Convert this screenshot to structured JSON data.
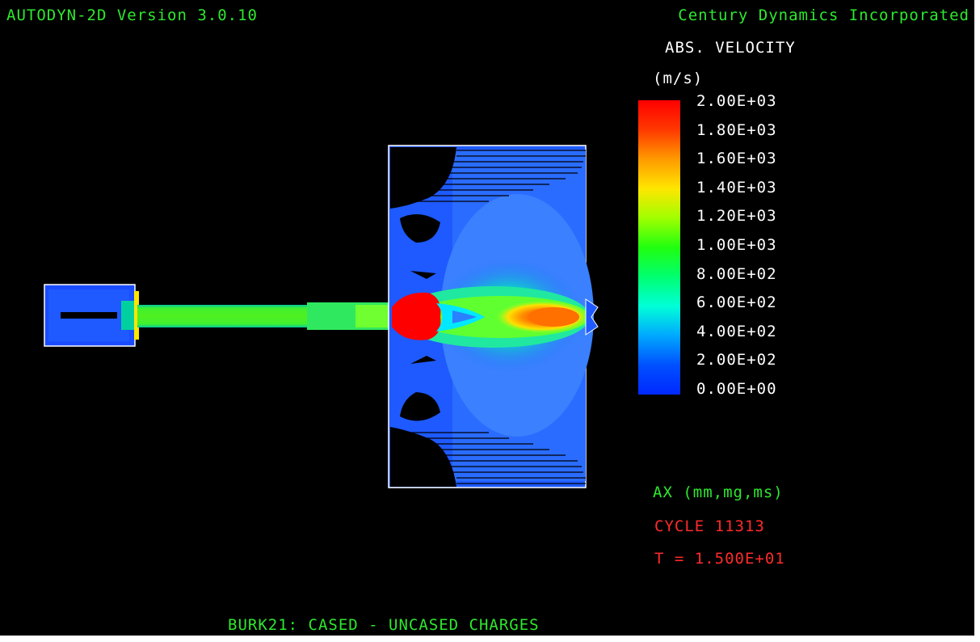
{
  "header": {
    "left": "AUTODYN-2D Version 3.0.10",
    "right": "Century Dynamics Incorporated"
  },
  "legend": {
    "title": "ABS. VELOCITY",
    "units": "(m/s)",
    "ticks": [
      "2.00E+03",
      "1.80E+03",
      "1.60E+03",
      "1.40E+03",
      "1.20E+03",
      "1.00E+03",
      "8.00E+02",
      "6.00E+02",
      "4.00E+02",
      "2.00E+02",
      "0.00E+00"
    ],
    "colors": [
      "#ff0000",
      "#ff6a00",
      "#ffc800",
      "#c8ff00",
      "#3cff00",
      "#00ff50",
      "#00ffc8",
      "#00b4ff",
      "#0046ff"
    ]
  },
  "info": {
    "units_line": "AX (mm,mg,ms)",
    "cycle_line": "CYCLE 11313",
    "time_line": "T = 1.500E+01"
  },
  "footer": {
    "title": "BURK21: CASED - UNCASED CHARGES"
  },
  "colors": {
    "background": "#000000",
    "text_green": "#2ee82e",
    "text_red": "#ff2a2a",
    "text_white": "#ffffff"
  }
}
